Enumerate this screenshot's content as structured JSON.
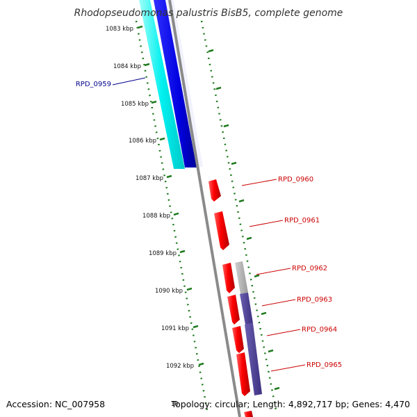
{
  "header": {
    "title": "Rhodopseudomonas palustris BisB5, complete genome"
  },
  "footer": {
    "accession": "Accession: NC_007958",
    "topology": "Topology: circular; Length: 4,892,717 bp; Genes: 4,470",
    "partial_tick": "10"
  },
  "ticks": [
    {
      "label": "1083 kbp"
    },
    {
      "label": "1084 kbp"
    },
    {
      "label": "1085 kbp"
    },
    {
      "label": "1086 kbp"
    },
    {
      "label": "1087 kbp"
    },
    {
      "label": "1088 kbp"
    },
    {
      "label": "1089 kbp"
    },
    {
      "label": "1090 kbp"
    },
    {
      "label": "1091 kbp"
    },
    {
      "label": "1092 kbp"
    }
  ],
  "genes": [
    {
      "label": "RPD_0959",
      "color": "#00008b"
    },
    {
      "label": "RPD_0960",
      "color": "#cc0000"
    },
    {
      "label": "RPD_0961",
      "color": "#cc0000"
    },
    {
      "label": "RPD_0962",
      "color": "#cc0000"
    },
    {
      "label": "RPD_0963",
      "color": "#cc0000"
    },
    {
      "label": "RPD_0964",
      "color": "#cc0000"
    },
    {
      "label": "RPD_0965",
      "color": "#cc0000"
    }
  ],
  "colors": {
    "cds": "#ff0000",
    "gene": "#0000ff",
    "gene_dark": "#4a3f8f",
    "gc_skew": "#00ffff",
    "pseudo": "#b0b0b0",
    "backbone": "#8a8a8a",
    "ticks": "#1f7a1f"
  }
}
